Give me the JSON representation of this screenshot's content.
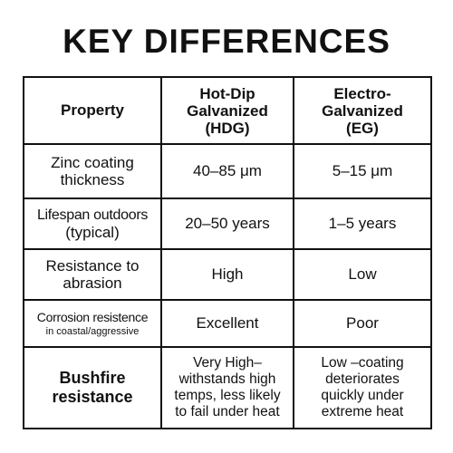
{
  "title": "KEY DIFFERENCES",
  "header": {
    "property": "Property",
    "hdg": [
      "Hot-Dip",
      "Galvanized",
      "(HDG)"
    ],
    "eg": [
      "Electro-",
      "Galvanized",
      "(EG)"
    ]
  },
  "rows": [
    {
      "property": [
        "Zinc coating",
        "thickness"
      ],
      "hdg": "40–85 μm",
      "eg": "5–15 μm"
    },
    {
      "property": [
        "Lifespan outdoors",
        "(typical)"
      ],
      "hdg": "20–50 years",
      "eg": "1–5 years"
    },
    {
      "property": [
        "Resistance to",
        "abrasion"
      ],
      "hdg": "High",
      "eg": "Low"
    },
    {
      "property": [
        "Corrosion resistence",
        "in coastal/aggressive"
      ],
      "hdg": "Excellent",
      "eg": "Poor"
    },
    {
      "property": [
        "Bushfire",
        "resistance"
      ],
      "hdg": [
        "Very High–",
        "withstands high",
        "temps, less likely",
        "to fail under heat"
      ],
      "eg": [
        "Low –coating",
        "deteriorates",
        "quickly under",
        "extreme heat"
      ]
    }
  ]
}
